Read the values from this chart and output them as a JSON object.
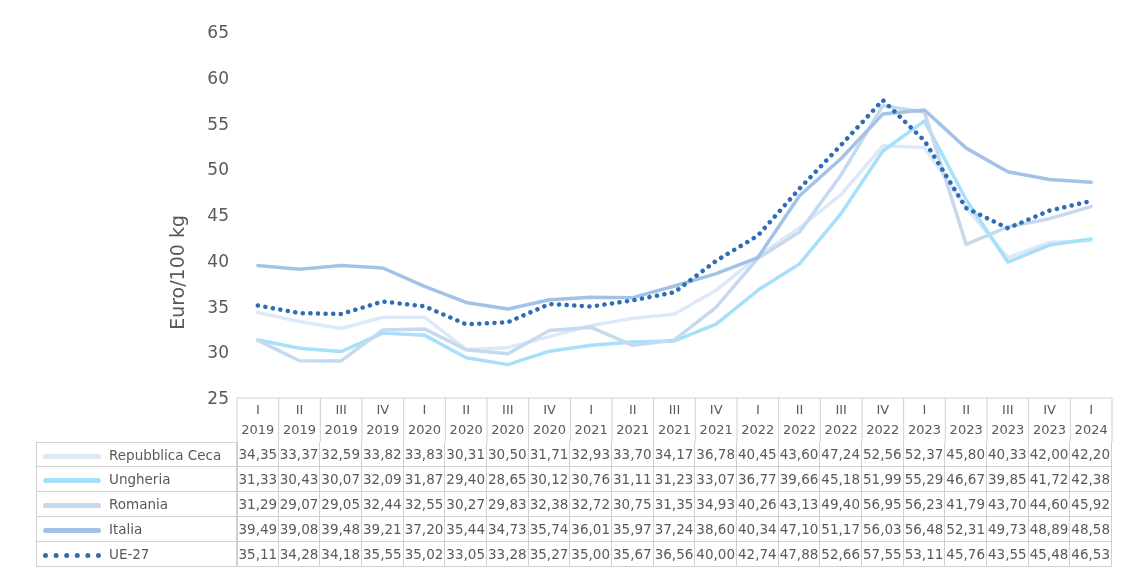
{
  "chart_data": {
    "type": "line",
    "ylabel": "Euro/100 kg",
    "ylim": [
      25,
      65
    ],
    "yticks": [
      25,
      30,
      35,
      40,
      45,
      50,
      55,
      60,
      65
    ],
    "legend": "bottom",
    "categories": [
      "I 2019",
      "II 2019",
      "III 2019",
      "IV 2019",
      "I 2020",
      "II 2020",
      "III 2020",
      "IV 2020",
      "I 2021",
      "II 2021",
      "III 2021",
      "IV 2021",
      "I 2022",
      "II 2022",
      "III 2022",
      "IV 2022",
      "I 2023",
      "II 2023",
      "III 2023",
      "IV 2023",
      "I 2024"
    ],
    "series": [
      {
        "name": "Repubblica Ceca",
        "color": "#dde9f7",
        "values": [
          34.35,
          33.37,
          32.59,
          33.82,
          33.83,
          30.31,
          30.5,
          31.71,
          32.93,
          33.7,
          34.17,
          36.78,
          40.45,
          43.6,
          47.24,
          52.56,
          52.37,
          45.8,
          40.33,
          42.0,
          42.2
        ],
        "value_labels": [
          "34,35",
          "33,37",
          "32,59",
          "33,82",
          "33,83",
          "30,31",
          "30,50",
          "31,71",
          "32,93",
          "33,70",
          "34,17",
          "36,78",
          "40,45",
          "43,60",
          "47,24",
          "52,56",
          "52,37",
          "45,80",
          "40,33",
          "42,00",
          "42,20"
        ]
      },
      {
        "name": "Ungheria",
        "color": "#a6e0fb",
        "values": [
          31.33,
          30.43,
          30.07,
          32.09,
          31.87,
          29.4,
          28.65,
          30.12,
          30.76,
          31.11,
          31.23,
          33.07,
          36.77,
          39.66,
          45.18,
          51.99,
          55.29,
          46.67,
          39.85,
          41.72,
          42.38
        ],
        "value_labels": [
          "31,33",
          "30,43",
          "30,07",
          "32,09",
          "31,87",
          "29,40",
          "28,65",
          "30,12",
          "30,76",
          "31,11",
          "31,23",
          "33,07",
          "36,77",
          "39,66",
          "45,18",
          "51,99",
          "55,29",
          "46,67",
          "39,85",
          "41,72",
          "42,38"
        ]
      },
      {
        "name": "Romania",
        "color": "#c5d9ef",
        "values": [
          31.29,
          29.07,
          29.05,
          32.44,
          32.55,
          30.27,
          29.83,
          32.38,
          32.72,
          30.75,
          31.35,
          34.93,
          40.26,
          43.13,
          49.4,
          56.95,
          56.23,
          41.79,
          43.7,
          44.6,
          45.92
        ],
        "value_labels": [
          "31,29",
          "29,07",
          "29,05",
          "32,44",
          "32,55",
          "30,27",
          "29,83",
          "32,38",
          "32,72",
          "30,75",
          "31,35",
          "34,93",
          "40,26",
          "43,13",
          "49,40",
          "56,95",
          "56,23",
          "41,79",
          "43,70",
          "44,60",
          "45,92"
        ]
      },
      {
        "name": "Italia",
        "color": "#a3c2e8",
        "values": [
          39.49,
          39.08,
          39.48,
          39.21,
          37.2,
          35.44,
          34.73,
          35.74,
          36.01,
          35.97,
          37.24,
          38.6,
          40.34,
          47.1,
          51.17,
          56.03,
          56.48,
          52.31,
          49.73,
          48.89,
          48.58
        ],
        "value_labels": [
          "39,49",
          "39,08",
          "39,48",
          "39,21",
          "37,20",
          "35,44",
          "34,73",
          "35,74",
          "36,01",
          "35,97",
          "37,24",
          "38,60",
          "40,34",
          "47,10",
          "51,17",
          "56,03",
          "56,48",
          "52,31",
          "49,73",
          "48,89",
          "48,58"
        ]
      },
      {
        "name": "UE-27",
        "color": "#2e6db4",
        "line_style": "dotted",
        "values": [
          35.11,
          34.28,
          34.18,
          35.55,
          35.02,
          33.05,
          33.28,
          35.27,
          35.0,
          35.67,
          36.56,
          40.0,
          42.74,
          47.88,
          52.66,
          57.55,
          53.11,
          45.76,
          43.55,
          45.48,
          46.53
        ],
        "value_labels": [
          "35,11",
          "34,28",
          "34,18",
          "35,55",
          "35,02",
          "33,05",
          "33,28",
          "35,27",
          "35,00",
          "35,67",
          "36,56",
          "40,00",
          "42,74",
          "47,88",
          "52,66",
          "57,55",
          "53,11",
          "45,76",
          "43,55",
          "45,48",
          "46,53"
        ]
      }
    ]
  }
}
